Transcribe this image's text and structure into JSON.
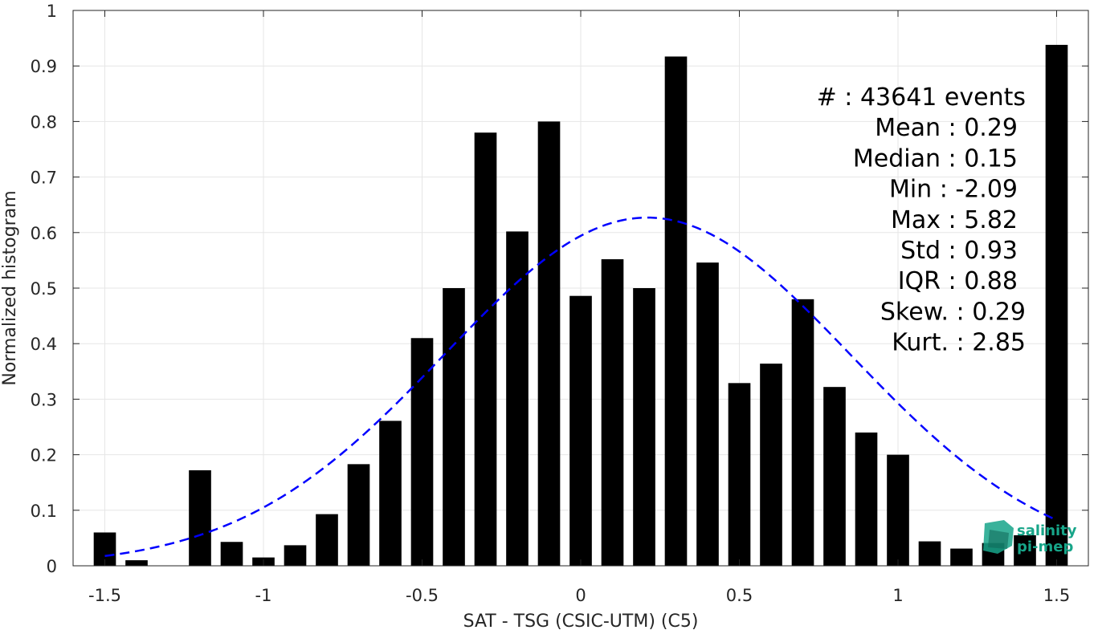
{
  "chart_data": {
    "type": "bar",
    "xlabel": "SAT - TSG (CSIC-UTM) (C5)",
    "ylabel": "Normalized histogram",
    "xlim": [
      -1.6,
      1.6
    ],
    "ylim": [
      0,
      1
    ],
    "x_ticks": [
      -1.5,
      -1,
      -0.5,
      0,
      0.5,
      1,
      1.5
    ],
    "x_tick_labels": [
      "-1.5",
      "-1",
      "-0.5",
      "0",
      "0.5",
      "1",
      "1.5"
    ],
    "y_ticks": [
      0,
      0.1,
      0.2,
      0.3,
      0.4,
      0.5,
      0.6,
      0.7,
      0.8,
      0.9,
      1
    ],
    "y_tick_labels": [
      "0",
      "0.1",
      "0.2",
      "0.3",
      "0.4",
      "0.5",
      "0.6",
      "0.7",
      "0.8",
      "0.9",
      "1"
    ],
    "grid": true,
    "bar_color": "#000000",
    "fit_color": "#0000ff",
    "bin_width": 0.1,
    "x": [
      -1.5,
      -1.4,
      -1.3,
      -1.2,
      -1.1,
      -1.0,
      -0.9,
      -0.8,
      -0.7,
      -0.6,
      -0.5,
      -0.4,
      -0.3,
      -0.2,
      -0.1,
      0.0,
      0.1,
      0.2,
      0.3,
      0.4,
      0.5,
      0.6,
      0.7,
      0.8,
      0.9,
      1.0,
      1.1,
      1.2,
      1.3,
      1.4,
      1.5
    ],
    "values": [
      0.06,
      0.01,
      0.0,
      0.172,
      0.043,
      0.015,
      0.037,
      0.093,
      0.183,
      0.261,
      0.41,
      0.5,
      0.78,
      0.602,
      0.8,
      0.486,
      0.552,
      0.5,
      0.917,
      0.546,
      0.329,
      0.364,
      0.48,
      0.322,
      0.24,
      0.2,
      0.044,
      0.031,
      0.041,
      0.055,
      0.938
    ],
    "fit": {
      "style": "dashed",
      "mean": 0.21,
      "std": 0.64,
      "peak": 0.627,
      "x_range": [
        -1.5,
        1.5
      ]
    },
    "stats": [
      "#  : 43641 events",
      "Mean : 0.29",
      "Median : 0.15",
      "Min : -2.09",
      "Max : 5.82",
      "Std : 0.93",
      "IQR : 0.88",
      "Skew. : 0.29",
      "Kurt. : 2.85"
    ]
  },
  "logo": {
    "line1": "salinity",
    "line2": "pi-mep",
    "color": "#17a589"
  }
}
